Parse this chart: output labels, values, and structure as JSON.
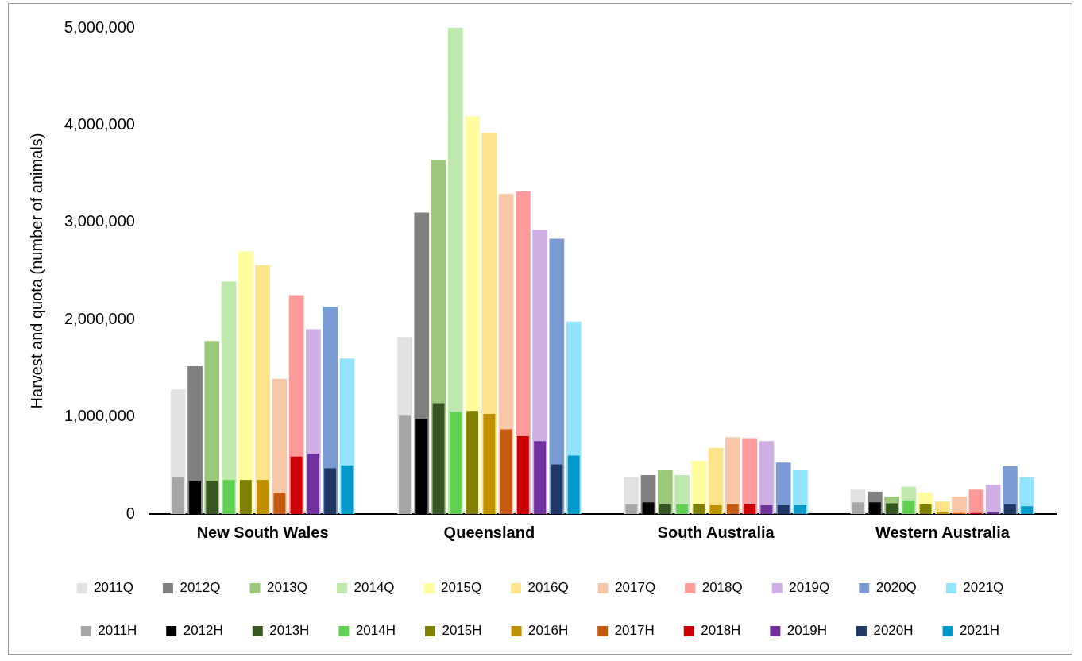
{
  "chart_data": {
    "type": "bar",
    "ylabel": "Harvest and quota (number of animals)",
    "categories": [
      "New South Wales",
      "Queensland",
      "South Australia",
      "Western Australia"
    ],
    "ylim": [
      0,
      5000000
    ],
    "yticks": [
      0,
      {
        "value": 1000000,
        "label": "1,000,000"
      },
      {
        "value": 2000000,
        "label": "2,000,000"
      },
      {
        "value": 3000000,
        "label": "3,000,000"
      },
      {
        "value": 4000000,
        "label": "4,000,000"
      },
      {
        "value": 5000000,
        "label": "5,000,000"
      }
    ],
    "grid": false,
    "legend": "bottom",
    "series": [
      {
        "name": "2011Q",
        "color": "#e2e2e2",
        "values": [
          1280000,
          1820000,
          380000,
          250000
        ]
      },
      {
        "name": "2012Q",
        "color": "#808080",
        "values": [
          1520000,
          3100000,
          400000,
          230000
        ]
      },
      {
        "name": "2013Q",
        "color": "#9bc87b",
        "values": [
          1780000,
          3640000,
          450000,
          180000
        ]
      },
      {
        "name": "2014Q",
        "color": "#bfe8ae",
        "values": [
          2390000,
          5000000,
          400000,
          280000
        ]
      },
      {
        "name": "2015Q",
        "color": "#fffd9e",
        "values": [
          2700000,
          4090000,
          550000,
          220000
        ]
      },
      {
        "name": "2016Q",
        "color": "#fde38a",
        "values": [
          2560000,
          3920000,
          680000,
          130000
        ]
      },
      {
        "name": "2017Q",
        "color": "#f7c7a7",
        "values": [
          1390000,
          3290000,
          790000,
          180000
        ]
      },
      {
        "name": "2018Q",
        "color": "#ff9a9a",
        "values": [
          2250000,
          3320000,
          780000,
          250000
        ]
      },
      {
        "name": "2019Q",
        "color": "#cfaee4",
        "values": [
          1900000,
          2920000,
          750000,
          300000
        ]
      },
      {
        "name": "2020Q",
        "color": "#7a9bd4",
        "values": [
          2130000,
          2830000,
          530000,
          490000
        ]
      },
      {
        "name": "2021Q",
        "color": "#93e5ff",
        "values": [
          1600000,
          1980000,
          450000,
          380000
        ]
      },
      {
        "name": "2011H",
        "color": "#a6a6a6",
        "values": [
          380000,
          1020000,
          100000,
          120000
        ]
      },
      {
        "name": "2012H",
        "color": "#000000",
        "values": [
          340000,
          980000,
          120000,
          120000
        ]
      },
      {
        "name": "2013H",
        "color": "#375623",
        "values": [
          340000,
          1140000,
          100000,
          110000
        ]
      },
      {
        "name": "2014H",
        "color": "#5fd052",
        "values": [
          350000,
          1050000,
          100000,
          140000
        ]
      },
      {
        "name": "2015H",
        "color": "#7f7f00",
        "values": [
          350000,
          1060000,
          100000,
          100000
        ]
      },
      {
        "name": "2016H",
        "color": "#bf9000",
        "values": [
          350000,
          1030000,
          90000,
          20000
        ]
      },
      {
        "name": "2017H",
        "color": "#c55a11",
        "values": [
          220000,
          870000,
          100000,
          10000
        ]
      },
      {
        "name": "2018H",
        "color": "#cc0000",
        "values": [
          590000,
          800000,
          100000,
          10000
        ]
      },
      {
        "name": "2019H",
        "color": "#7030a0",
        "values": [
          620000,
          750000,
          90000,
          20000
        ]
      },
      {
        "name": "2020H",
        "color": "#203864",
        "values": [
          470000,
          510000,
          90000,
          100000
        ]
      },
      {
        "name": "2021H",
        "color": "#0099cc",
        "values": [
          500000,
          600000,
          90000,
          80000
        ]
      }
    ]
  }
}
